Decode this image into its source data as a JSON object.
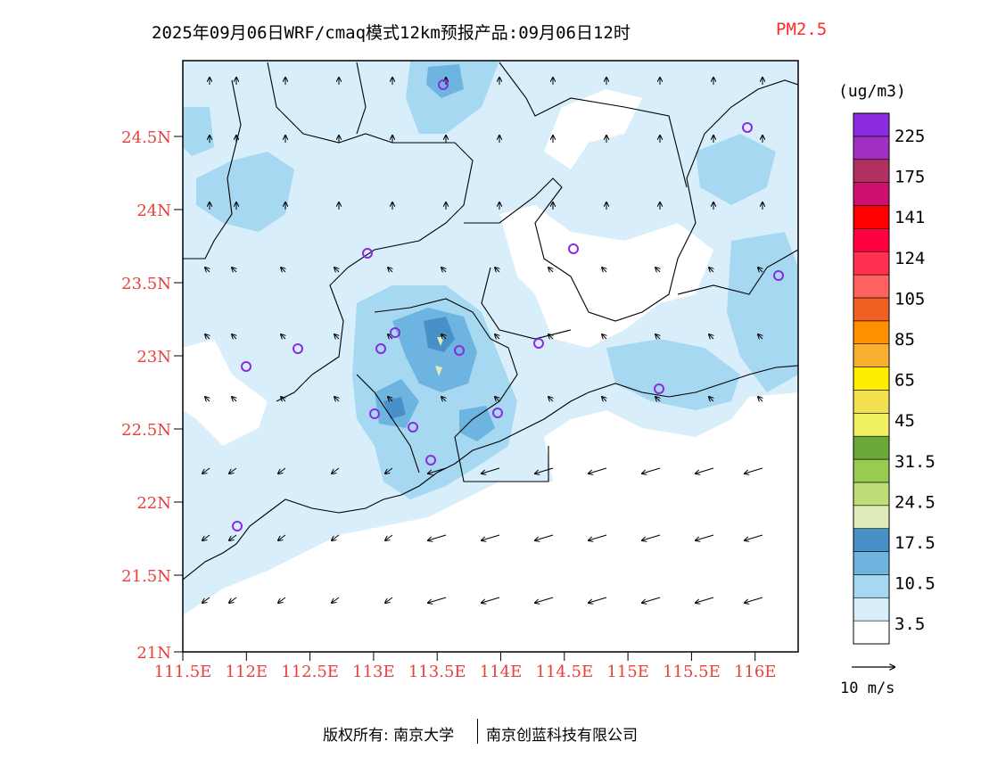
{
  "title": {
    "main": "2025年09月06日WRF/cmaq模式12km预报产品:09月06日12时",
    "pollutant": "PM2.5"
  },
  "map": {
    "lat_labels": [
      "24.5N",
      "24N",
      "23.5N",
      "23N",
      "22.5N",
      "22N",
      "21.5N",
      "21N"
    ],
    "lon_labels": [
      "111.5E",
      "112E",
      "112.5E",
      "113E",
      "113.5E",
      "114E",
      "114.5E",
      "115E",
      "115.5E",
      "116E"
    ],
    "label_color": "#e8403c"
  },
  "legend": {
    "unit": "(ug/m3)",
    "labels": [
      "225",
      "175",
      "141",
      "124",
      "105",
      "85",
      "65",
      "45",
      "31.5",
      "24.5",
      "17.5",
      "10.5",
      "3.5"
    ],
    "colors": [
      "#ffffff",
      "#d8eefa",
      "#a6d8f2",
      "#6eb4e0",
      "#4890c8",
      "#dfebb8",
      "#c0dd78",
      "#98cc50",
      "#6aa838",
      "#f0f060",
      "#f2e050",
      "#ffee00",
      "#f8b030",
      "#ff9000",
      "#f06020",
      "#ff6060",
      "#ff3050",
      "#ff0040",
      "#ff0000",
      "#d01070",
      "#b03060",
      "#a030c0",
      "#8a2be2"
    ]
  },
  "wind_scale": {
    "label": "10 m/s"
  },
  "footer": {
    "rights": "版权所有: 南京大学",
    "company": "南京创蓝科技有限公司"
  }
}
